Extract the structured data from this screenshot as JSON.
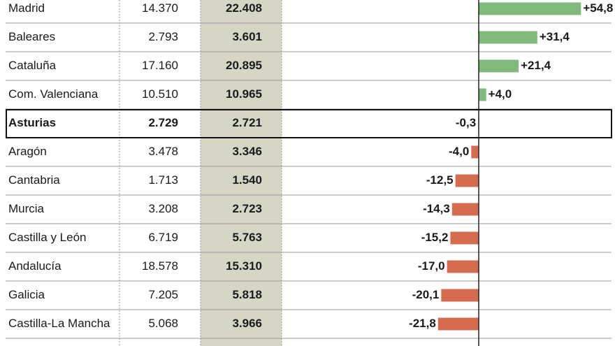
{
  "table": {
    "bar_colors": {
      "positive": "#7fba7c",
      "negative": "#d66c4f"
    },
    "rows": [
      {
        "region": "Madrid",
        "a": "14.370",
        "b": "22.408",
        "change": 54.8,
        "change_label": "+54,8"
      },
      {
        "region": "Baleares",
        "a": "2.793",
        "b": "3.601",
        "change": 31.4,
        "change_label": "+31,4"
      },
      {
        "region": "Cataluña",
        "a": "17.160",
        "b": "20.895",
        "change": 21.4,
        "change_label": "+21,4"
      },
      {
        "region": "Com. Valenciana",
        "a": "10.510",
        "b": "10.965",
        "change": 4.0,
        "change_label": "+4,0"
      },
      {
        "region": "Asturias",
        "a": "2.729",
        "b": "2.721",
        "change": -0.3,
        "change_label": "-0,3",
        "highlight": true
      },
      {
        "region": "Aragón",
        "a": "3.478",
        "b": "3.346",
        "change": -4.0,
        "change_label": "-4,0"
      },
      {
        "region": "Cantabria",
        "a": "1.713",
        "b": "1.540",
        "change": -12.5,
        "change_label": "-12,5"
      },
      {
        "region": "Murcia",
        "a": "3.208",
        "b": "2.723",
        "change": -14.3,
        "change_label": "-14,3"
      },
      {
        "region": "Castilla y León",
        "a": "6.719",
        "b": "5.763",
        "change": -15.2,
        "change_label": "-15,2"
      },
      {
        "region": "Andalucía",
        "a": "18.578",
        "b": "15.310",
        "change": -17.0,
        "change_label": "-17,0"
      },
      {
        "region": "Galicia",
        "a": "7.205",
        "b": "5.818",
        "change": -20.1,
        "change_label": "-20,1"
      },
      {
        "region": "Castilla-La Mancha",
        "a": "5.068",
        "b": "3.966",
        "change": -21.8,
        "change_label": "-21,8"
      }
    ]
  }
}
